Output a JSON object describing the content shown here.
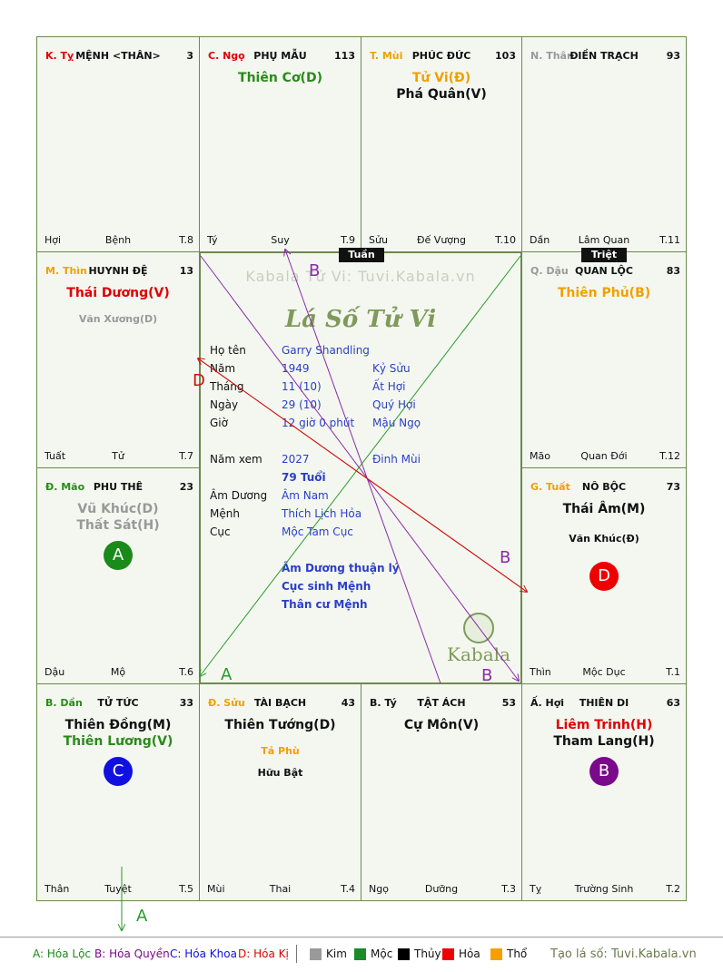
{
  "palaces": [
    {
      "can": "K. Tỵ",
      "can_color": "#e00000",
      "name": "MỆNH <THÂN>",
      "num": "3",
      "stars": [],
      "minors": [],
      "badge": null,
      "f1": "Hợi",
      "f2": "Bệnh",
      "f3": "T.8"
    },
    {
      "can": "C. Ngọ",
      "can_color": "#e00000",
      "name": "PHỤ MẪU",
      "num": "113",
      "stars": [
        {
          "text": "Thiên Cơ(D)",
          "color": "#2a8a1a"
        }
      ],
      "minors": [],
      "badge": null,
      "f1": "Tý",
      "f2": "Suy",
      "f3": "T.9"
    },
    {
      "can": "T. Mùi",
      "can_color": "#f0a000",
      "name": "PHÚC ĐỨC",
      "num": "103",
      "stars": [
        {
          "text": "Tử Vi(Đ)",
          "color": "#f0a000"
        },
        {
          "text": "Phá Quân(V)",
          "color": "#111111"
        }
      ],
      "minors": [],
      "badge": null,
      "f1": "Sửu",
      "f2": "Đế Vượng",
      "f3": "T.10"
    },
    {
      "can": "N. Thân",
      "can_color": "#999999",
      "name": "ĐIỀN TRẠCH",
      "num": "93",
      "stars": [],
      "minors": [],
      "badge": null,
      "f1": "Dần",
      "f2": "Lâm Quan",
      "f3": "T.11"
    },
    {
      "can": "M. Thìn",
      "can_color": "#f0a000",
      "name": "HUYNH ĐỆ",
      "num": "13",
      "stars": [
        {
          "text": "Thái Dương(V)",
          "color": "#e00000"
        }
      ],
      "minors": [
        {
          "text": "Văn Xương(D)",
          "color": "#999999"
        }
      ],
      "badge": null,
      "f1": "Tuất",
      "f2": "Tử",
      "f3": "T.7"
    },
    {
      "can": "Q. Dậu",
      "can_color": "#999999",
      "name": "QUAN LỘC",
      "num": "83",
      "stars": [
        {
          "text": "Thiên Phủ(B)",
          "color": "#f0a000"
        }
      ],
      "minors": [],
      "badge": null,
      "f1": "Mão",
      "f2": "Quan Đới",
      "f3": "T.12"
    },
    {
      "can": "Đ. Mão",
      "can_color": "#2a8a1a",
      "name": "PHU THÊ",
      "num": "23",
      "stars": [
        {
          "text": "Vũ Khúc(D)",
          "color": "#999999"
        },
        {
          "text": "Thất Sát(H)",
          "color": "#999999"
        }
      ],
      "minors": [],
      "badge": {
        "text": "A",
        "color": "#1a8a1a"
      },
      "f1": "Dậu",
      "f2": "Mộ",
      "f3": "T.6"
    },
    {
      "can": "G. Tuất",
      "can_color": "#f0a000",
      "name": "NÔ BỘC",
      "num": "73",
      "stars": [
        {
          "text": "Thái Âm(M)",
          "color": "#111111"
        }
      ],
      "minors": [
        {
          "text": "Văn Khúc(Đ)",
          "color": "#111111"
        }
      ],
      "badge": {
        "text": "D",
        "color": "#ee0000"
      },
      "f1": "Thìn",
      "f2": "Mộc Dục",
      "f3": "T.1"
    },
    {
      "can": "B. Dần",
      "can_color": "#2a8a1a",
      "name": "TỬ TỨC",
      "num": "33",
      "stars": [
        {
          "text": "Thiên Đồng(M)",
          "color": "#111111"
        },
        {
          "text": "Thiên Lương(V)",
          "color": "#2a8a1a"
        }
      ],
      "minors": [],
      "badge": {
        "text": "C",
        "color": "#1010e0"
      },
      "f1": "Thân",
      "f2": "Tuyệt",
      "f3": "T.5"
    },
    {
      "can": "Đ. Sửu",
      "can_color": "#f0a000",
      "name": "TÀI BẠCH",
      "num": "43",
      "stars": [
        {
          "text": "Thiên Tướng(D)",
          "color": "#111111"
        }
      ],
      "minors": [
        {
          "text": "Tả Phù",
          "color": "#f0a000"
        },
        {
          "text": "Hữu Bật",
          "color": "#111111"
        }
      ],
      "badge": null,
      "f1": "Mùi",
      "f2": "Thai",
      "f3": "T.4"
    },
    {
      "can": "B. Tý",
      "can_color": "#111111",
      "name": "TẬT ÁCH",
      "num": "53",
      "stars": [
        {
          "text": "Cự Môn(V)",
          "color": "#111111"
        }
      ],
      "minors": [],
      "badge": null,
      "f1": "Ngọ",
      "f2": "Dưỡng",
      "f3": "T.3"
    },
    {
      "can": "Ấ. Hợi",
      "can_color": "#111111",
      "name": "THIÊN DI",
      "num": "63",
      "stars": [
        {
          "text": "Liêm Trinh(H)",
          "color": "#e00000"
        },
        {
          "text": "Tham Lang(H)",
          "color": "#111111"
        }
      ],
      "minors": [],
      "badge": {
        "text": "B",
        "color": "#7a0a8a"
      },
      "f1": "Tỵ",
      "f2": "Trường Sinh",
      "f3": "T.2"
    }
  ],
  "tags": {
    "tuan": "Tuần",
    "triet": "Triệt"
  },
  "center": {
    "site": "Kabala Tử Vi: Tuvi.Kabala.vn",
    "logo": "Lá Số Tử Vi",
    "rows": [
      {
        "label": "Họ tên",
        "v1": "Garry Shandling",
        "v2": ""
      },
      {
        "label": "Năm",
        "v1": "1949",
        "v2": "Kỷ Sửu"
      },
      {
        "label": "Tháng",
        "v1": "11 (10)",
        "v2": "Ất Hợi"
      },
      {
        "label": "Ngày",
        "v1": "29 (10)",
        "v2": "Quý Hợi"
      },
      {
        "label": "Giờ",
        "v1": "12 giờ 0 phút",
        "v2": "Mậu Ngọ"
      },
      {
        "label": "Năm xem",
        "v1": "2027",
        "v2": "Đinh Mùi"
      },
      {
        "label": "",
        "v1": "79 Tuổi",
        "v2": ""
      },
      {
        "label": "Âm Dương",
        "v1": "Âm Nam",
        "v2": ""
      },
      {
        "label": "Mệnh",
        "v1": "Thích Lịch Hỏa",
        "v2": ""
      },
      {
        "label": "Cục",
        "v1": "Mộc Tam Cục",
        "v2": ""
      }
    ],
    "notes": [
      "Âm Dương thuận lý",
      "Cục sinh Mệnh",
      "Thân cư Mệnh"
    ],
    "brand": "Kabala"
  },
  "arrow_labels": {
    "a1": "A",
    "a2": "A",
    "b1": "B",
    "b2": "B",
    "b3": "B",
    "d1": "D"
  },
  "legend": {
    "items": [
      {
        "text": "A: Hóa Lộc",
        "color": "#1a8a1a"
      },
      {
        "text": "B: Hóa Quyền",
        "color": "#7a0a8a"
      },
      {
        "text": "C: Hóa Khoa",
        "color": "#1010e0"
      },
      {
        "text": "D: Hóa Kị",
        "color": "#e00000"
      }
    ],
    "elements": [
      {
        "text": "Kim",
        "color": "#9a9a9a"
      },
      {
        "text": "Mộc",
        "color": "#1a8a2a"
      },
      {
        "text": "Thủy",
        "color": "#000000"
      },
      {
        "text": "Hỏa",
        "color": "#ee0000"
      },
      {
        "text": "Thổ",
        "color": "#f5a000"
      }
    ],
    "credit": "Tạo lá số: Tuvi.Kabala.vn"
  }
}
